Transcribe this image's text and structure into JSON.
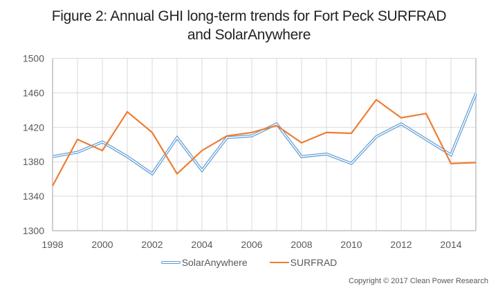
{
  "chart_data": {
    "type": "line",
    "title": "Figure 2: Annual GHI long-term trends for Fort Peck SURFRAD and SolarAnywhere",
    "title_lines": [
      "Figure 2: Annual GHI long-term trends for Fort Peck SURFRAD",
      "and SolarAnywhere"
    ],
    "xlabel": "",
    "ylabel": "",
    "x": [
      1998,
      1999,
      2000,
      2001,
      2002,
      2003,
      2004,
      2005,
      2006,
      2007,
      2008,
      2009,
      2010,
      2011,
      2012,
      2013,
      2014,
      2015
    ],
    "xlim": [
      1998,
      2015
    ],
    "ylim": [
      1300,
      1500
    ],
    "x_ticks": [
      "1998",
      "2000",
      "2002",
      "2004",
      "2006",
      "2008",
      "2010",
      "2012",
      "2014"
    ],
    "y_ticks": [
      "1300",
      "1340",
      "1380",
      "1420",
      "1460",
      "1500"
    ],
    "grid": true,
    "legend_position": "bottom",
    "series": [
      {
        "name": "SolarAnywhere",
        "color": "#5b9bd5",
        "style": "double-outline",
        "values": [
          1386,
          1391,
          1403,
          1386,
          1366,
          1408,
          1370,
          1408,
          1410,
          1424,
          1386,
          1389,
          1378,
          1409,
          1424,
          1406,
          1388,
          1459
        ]
      },
      {
        "name": "SURFRAD",
        "color": "#ed7d31",
        "style": "solid",
        "values": [
          1352,
          1406,
          1393,
          1438,
          1414,
          1366,
          1393,
          1410,
          1414,
          1422,
          1402,
          1414,
          1413,
          1452,
          1431,
          1436,
          1378,
          1379
        ]
      }
    ]
  },
  "legend": {
    "items": [
      "SolarAnywhere",
      "SURFRAD"
    ]
  },
  "footer": {
    "copyright": "Copyright © 2017 Clean Power Research"
  }
}
